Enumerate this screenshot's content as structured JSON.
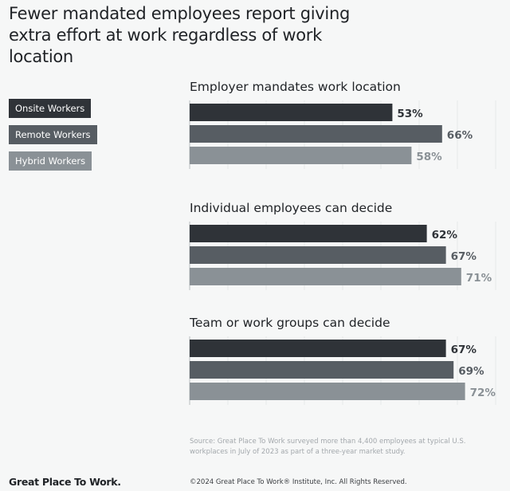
{
  "chart_data": {
    "type": "bar",
    "orientation": "horizontal",
    "title": "Fewer mandated employees report giving extra effort at work regardless of work location",
    "groups": [
      "Employer mandates work location",
      "Individual employees can decide",
      "Team or work groups can decide"
    ],
    "series": [
      {
        "name": "Onsite Workers",
        "color": "#2f3338",
        "values": [
          53,
          62,
          67
        ]
      },
      {
        "name": "Remote Workers",
        "color": "#575d63",
        "values": [
          66,
          67,
          69
        ]
      },
      {
        "name": "Hybrid Workers",
        "color": "#8a9196",
        "values": [
          58,
          71,
          72
        ]
      }
    ],
    "value_suffix": "%",
    "xlim": [
      0,
      80
    ],
    "grid": true,
    "legend_placement": "left"
  },
  "footer": {
    "source": "Source: Great Place To Work surveyed more than 4,400 employees at typical U.S. workplaces in July of 2023 as part of a three-year market study.",
    "logo": "Great Place To Work.",
    "copyright": "©2024 Great Place To Work® Institute, Inc. All Rights Reserved."
  }
}
